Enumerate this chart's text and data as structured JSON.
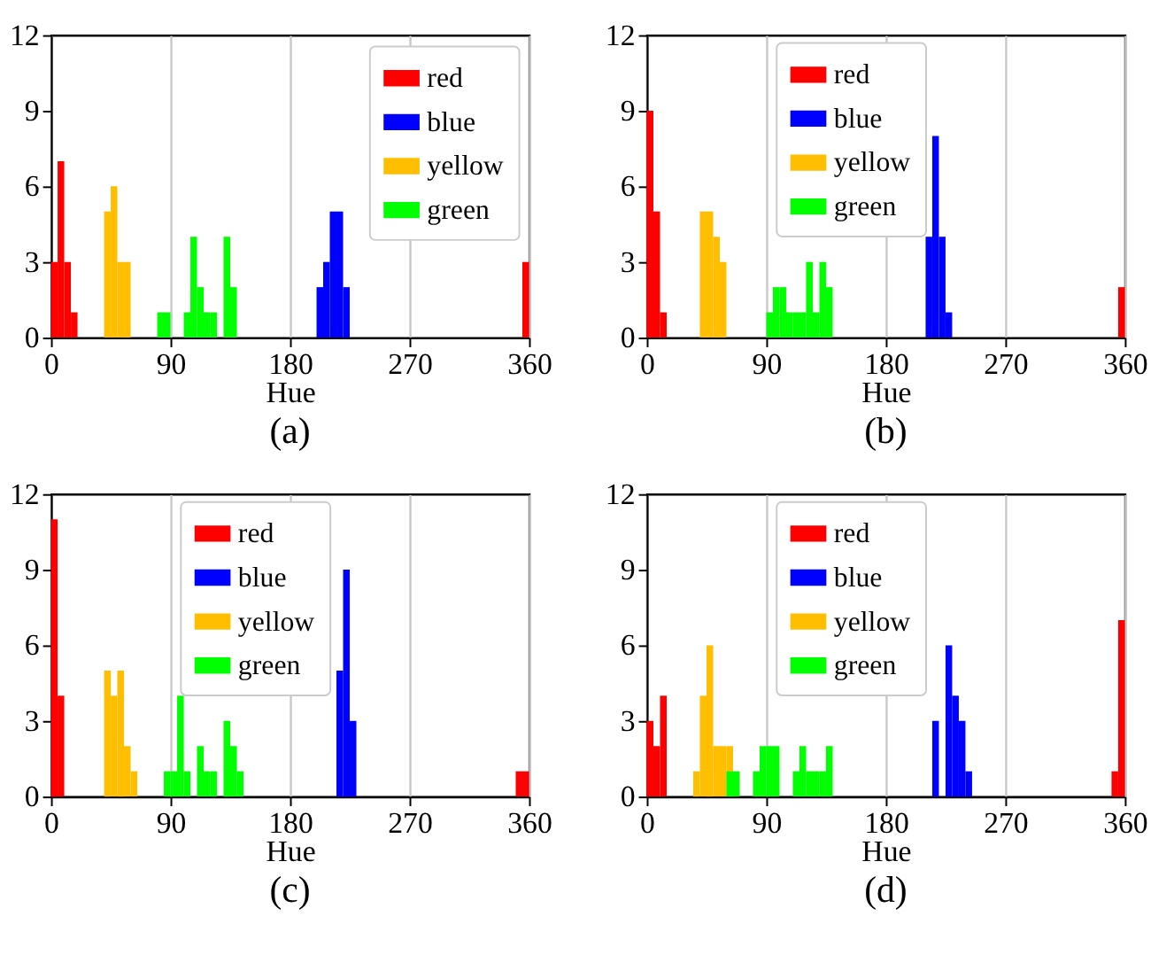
{
  "chart_data": [
    {
      "type": "histogram",
      "xlabel": "Hue",
      "annotations": [
        "(a)"
      ],
      "xlim": [
        0,
        360
      ],
      "xticks": [
        0,
        90,
        180,
        270,
        360
      ],
      "ylim": [
        0,
        12
      ],
      "yticks": [
        0,
        3,
        6,
        9,
        12
      ],
      "grid": "x",
      "legend": "top right",
      "bins": [
        0,
        5,
        10,
        15,
        20,
        25,
        30,
        35,
        40,
        45,
        50,
        55,
        60,
        65,
        70,
        75,
        80,
        85,
        90,
        95,
        100,
        105,
        110,
        115,
        120,
        125,
        130,
        135,
        140,
        145,
        150,
        155,
        160,
        165,
        170,
        175,
        180,
        185,
        190,
        195,
        200,
        205,
        210,
        215,
        220,
        225,
        230,
        235,
        240,
        245,
        250,
        255,
        260,
        265,
        270,
        275,
        280,
        285,
        290,
        295,
        300,
        305,
        310,
        315,
        320,
        325,
        330,
        335,
        340,
        345,
        350,
        355,
        360
      ],
      "series": [
        {
          "name": "red",
          "color": "#ff0000",
          "values": [
            3,
            7,
            3,
            1,
            0,
            0,
            0,
            0,
            0,
            0,
            0,
            0,
            0,
            0,
            0,
            0,
            0,
            0,
            0,
            0,
            0,
            0,
            0,
            0,
            0,
            0,
            0,
            0,
            0,
            0,
            0,
            0,
            0,
            0,
            0,
            0,
            0,
            0,
            0,
            0,
            0,
            0,
            0,
            0,
            0,
            0,
            0,
            0,
            0,
            0,
            0,
            0,
            0,
            0,
            0,
            0,
            0,
            0,
            0,
            0,
            0,
            0,
            0,
            0,
            0,
            0,
            0,
            0,
            0,
            0,
            0,
            3
          ]
        },
        {
          "name": "blue",
          "color": "#0000ff",
          "values": [
            0,
            0,
            0,
            0,
            0,
            0,
            0,
            0,
            0,
            0,
            0,
            0,
            0,
            0,
            0,
            0,
            0,
            0,
            0,
            0,
            0,
            0,
            0,
            0,
            0,
            0,
            0,
            0,
            0,
            0,
            0,
            0,
            0,
            0,
            0,
            0,
            0,
            0,
            0,
            0,
            2,
            3,
            5,
            5,
            2,
            0,
            0,
            0,
            0,
            0,
            0,
            0,
            0,
            0,
            0,
            0,
            0,
            0,
            0,
            0,
            0,
            0,
            0,
            0,
            0,
            0,
            0,
            0,
            0,
            0,
            0,
            0
          ]
        },
        {
          "name": "yellow",
          "color": "#ffbf00",
          "values": [
            0,
            0,
            0,
            0,
            0,
            0,
            0,
            0,
            5,
            6,
            3,
            3,
            0,
            0,
            0,
            0,
            0,
            0,
            0,
            0,
            0,
            0,
            0,
            0,
            0,
            0,
            0,
            0,
            0,
            0,
            0,
            0,
            0,
            0,
            0,
            0,
            0,
            0,
            0,
            0,
            0,
            0,
            0,
            0,
            0,
            0,
            0,
            0,
            0,
            0,
            0,
            0,
            0,
            0,
            0,
            0,
            0,
            0,
            0,
            0,
            0,
            0,
            0,
            0,
            0,
            0,
            0,
            0,
            0,
            0,
            0,
            0
          ]
        },
        {
          "name": "green",
          "color": "#00ff00",
          "values": [
            0,
            0,
            0,
            0,
            0,
            0,
            0,
            0,
            0,
            0,
            0,
            0,
            0,
            0,
            0,
            0,
            1,
            1,
            0,
            0,
            1,
            4,
            2,
            1,
            1,
            0,
            4,
            2,
            0,
            0,
            0,
            0,
            0,
            0,
            0,
            0,
            0,
            0,
            0,
            0,
            0,
            0,
            0,
            0,
            0,
            0,
            0,
            0,
            0,
            0,
            0,
            0,
            0,
            0,
            0,
            0,
            0,
            0,
            0,
            0,
            0,
            0,
            0,
            0,
            0,
            0,
            0,
            0,
            0,
            0,
            0,
            0
          ]
        }
      ]
    },
    {
      "type": "histogram",
      "xlabel": "Hue",
      "annotations": [
        "(b)"
      ],
      "xlim": [
        0,
        360
      ],
      "xticks": [
        0,
        90,
        180,
        270,
        360
      ],
      "ylim": [
        0,
        12
      ],
      "yticks": [
        0,
        3,
        6,
        9,
        12
      ],
      "grid": "x",
      "legend": "top",
      "bins": [
        0,
        5,
        10,
        15,
        20,
        25,
        30,
        35,
        40,
        45,
        50,
        55,
        60,
        65,
        70,
        75,
        80,
        85,
        90,
        95,
        100,
        105,
        110,
        115,
        120,
        125,
        130,
        135,
        140,
        145,
        150,
        155,
        160,
        165,
        170,
        175,
        180,
        185,
        190,
        195,
        200,
        205,
        210,
        215,
        220,
        225,
        230,
        235,
        240,
        245,
        250,
        255,
        260,
        265,
        270,
        275,
        280,
        285,
        290,
        295,
        300,
        305,
        310,
        315,
        320,
        325,
        330,
        335,
        340,
        345,
        350,
        355,
        360
      ],
      "series": [
        {
          "name": "red",
          "color": "#ff0000",
          "values": [
            9,
            5,
            1,
            0,
            0,
            0,
            0,
            0,
            0,
            0,
            0,
            0,
            0,
            0,
            0,
            0,
            0,
            0,
            0,
            0,
            0,
            0,
            0,
            0,
            0,
            0,
            0,
            0,
            0,
            0,
            0,
            0,
            0,
            0,
            0,
            0,
            0,
            0,
            0,
            0,
            0,
            0,
            0,
            0,
            0,
            0,
            0,
            0,
            0,
            0,
            0,
            0,
            0,
            0,
            0,
            0,
            0,
            0,
            0,
            0,
            0,
            0,
            0,
            0,
            0,
            0,
            0,
            0,
            0,
            0,
            0,
            2
          ]
        },
        {
          "name": "blue",
          "color": "#0000ff",
          "values": [
            0,
            0,
            0,
            0,
            0,
            0,
            0,
            0,
            0,
            0,
            0,
            0,
            0,
            0,
            0,
            0,
            0,
            0,
            0,
            0,
            0,
            0,
            0,
            0,
            0,
            0,
            0,
            0,
            0,
            0,
            0,
            0,
            0,
            0,
            0,
            0,
            0,
            0,
            0,
            0,
            0,
            0,
            4,
            8,
            4,
            1,
            0,
            0,
            0,
            0,
            0,
            0,
            0,
            0,
            0,
            0,
            0,
            0,
            0,
            0,
            0,
            0,
            0,
            0,
            0,
            0,
            0,
            0,
            0,
            0,
            0,
            0
          ]
        },
        {
          "name": "yellow",
          "color": "#ffbf00",
          "values": [
            0,
            0,
            0,
            0,
            0,
            0,
            0,
            0,
            5,
            5,
            4,
            3,
            0,
            0,
            0,
            0,
            0,
            0,
            0,
            0,
            0,
            0,
            0,
            0,
            0,
            0,
            0,
            0,
            0,
            0,
            0,
            0,
            0,
            0,
            0,
            0,
            0,
            0,
            0,
            0,
            0,
            0,
            0,
            0,
            0,
            0,
            0,
            0,
            0,
            0,
            0,
            0,
            0,
            0,
            0,
            0,
            0,
            0,
            0,
            0,
            0,
            0,
            0,
            0,
            0,
            0,
            0,
            0,
            0,
            0,
            0,
            0
          ]
        },
        {
          "name": "green",
          "color": "#00ff00",
          "values": [
            0,
            0,
            0,
            0,
            0,
            0,
            0,
            0,
            0,
            0,
            0,
            0,
            0,
            0,
            0,
            0,
            0,
            0,
            1,
            2,
            2,
            1,
            1,
            1,
            3,
            1,
            3,
            2,
            0,
            0,
            0,
            0,
            0,
            0,
            0,
            0,
            0,
            0,
            0,
            0,
            0,
            0,
            0,
            0,
            0,
            0,
            0,
            0,
            0,
            0,
            0,
            0,
            0,
            0,
            0,
            0,
            0,
            0,
            0,
            0,
            0,
            0,
            0,
            0,
            0,
            0,
            0,
            0,
            0,
            0,
            0,
            0
          ]
        }
      ]
    },
    {
      "type": "histogram",
      "xlabel": "Hue",
      "annotations": [
        "(c)"
      ],
      "xlim": [
        0,
        360
      ],
      "xticks": [
        0,
        90,
        180,
        270,
        360
      ],
      "ylim": [
        0,
        12
      ],
      "yticks": [
        0,
        3,
        6,
        9,
        12
      ],
      "grid": "x",
      "legend": "top",
      "bins": [
        0,
        5,
        10,
        15,
        20,
        25,
        30,
        35,
        40,
        45,
        50,
        55,
        60,
        65,
        70,
        75,
        80,
        85,
        90,
        95,
        100,
        105,
        110,
        115,
        120,
        125,
        130,
        135,
        140,
        145,
        150,
        155,
        160,
        165,
        170,
        175,
        180,
        185,
        190,
        195,
        200,
        205,
        210,
        215,
        220,
        225,
        230,
        235,
        240,
        245,
        250,
        255,
        260,
        265,
        270,
        275,
        280,
        285,
        290,
        295,
        300,
        305,
        310,
        315,
        320,
        325,
        330,
        335,
        340,
        345,
        350,
        355,
        360
      ],
      "series": [
        {
          "name": "red",
          "color": "#ff0000",
          "values": [
            11,
            4,
            0,
            0,
            0,
            0,
            0,
            0,
            0,
            0,
            0,
            0,
            0,
            0,
            0,
            0,
            0,
            0,
            0,
            0,
            0,
            0,
            0,
            0,
            0,
            0,
            0,
            0,
            0,
            0,
            0,
            0,
            0,
            0,
            0,
            0,
            0,
            0,
            0,
            0,
            0,
            0,
            0,
            0,
            0,
            0,
            0,
            0,
            0,
            0,
            0,
            0,
            0,
            0,
            0,
            0,
            0,
            0,
            0,
            0,
            0,
            0,
            0,
            0,
            0,
            0,
            0,
            0,
            0,
            0,
            1,
            1
          ]
        },
        {
          "name": "blue",
          "color": "#0000ff",
          "values": [
            0,
            0,
            0,
            0,
            0,
            0,
            0,
            0,
            0,
            0,
            0,
            0,
            0,
            0,
            0,
            0,
            0,
            0,
            0,
            0,
            0,
            0,
            0,
            0,
            0,
            0,
            0,
            0,
            0,
            0,
            0,
            0,
            0,
            0,
            0,
            0,
            0,
            0,
            0,
            0,
            0,
            0,
            0,
            5,
            9,
            3,
            0,
            0,
            0,
            0,
            0,
            0,
            0,
            0,
            0,
            0,
            0,
            0,
            0,
            0,
            0,
            0,
            0,
            0,
            0,
            0,
            0,
            0,
            0,
            0,
            0,
            0
          ]
        },
        {
          "name": "yellow",
          "color": "#ffbf00",
          "values": [
            0,
            0,
            0,
            0,
            0,
            0,
            0,
            0,
            5,
            4,
            5,
            2,
            1,
            0,
            0,
            0,
            0,
            0,
            0,
            0,
            0,
            0,
            0,
            0,
            0,
            0,
            0,
            0,
            0,
            0,
            0,
            0,
            0,
            0,
            0,
            0,
            0,
            0,
            0,
            0,
            0,
            0,
            0,
            0,
            0,
            0,
            0,
            0,
            0,
            0,
            0,
            0,
            0,
            0,
            0,
            0,
            0,
            0,
            0,
            0,
            0,
            0,
            0,
            0,
            0,
            0,
            0,
            0,
            0,
            0,
            0,
            0
          ]
        },
        {
          "name": "green",
          "color": "#00ff00",
          "values": [
            0,
            0,
            0,
            0,
            0,
            0,
            0,
            0,
            0,
            0,
            0,
            0,
            0,
            0,
            0,
            0,
            0,
            1,
            1,
            4,
            1,
            0,
            2,
            1,
            1,
            0,
            3,
            2,
            1,
            0,
            0,
            0,
            0,
            0,
            0,
            0,
            0,
            0,
            0,
            0,
            0,
            0,
            0,
            0,
            0,
            0,
            0,
            0,
            0,
            0,
            0,
            0,
            0,
            0,
            0,
            0,
            0,
            0,
            0,
            0,
            0,
            0,
            0,
            0,
            0,
            0,
            0,
            0,
            0,
            0,
            0,
            0
          ]
        }
      ]
    },
    {
      "type": "histogram",
      "xlabel": "Hue",
      "annotations": [
        "(d)"
      ],
      "xlim": [
        0,
        360
      ],
      "xticks": [
        0,
        90,
        180,
        270,
        360
      ],
      "ylim": [
        0,
        12
      ],
      "yticks": [
        0,
        3,
        6,
        9,
        12
      ],
      "grid": "x",
      "legend": "top",
      "bins": [
        0,
        5,
        10,
        15,
        20,
        25,
        30,
        35,
        40,
        45,
        50,
        55,
        60,
        65,
        70,
        75,
        80,
        85,
        90,
        95,
        100,
        105,
        110,
        115,
        120,
        125,
        130,
        135,
        140,
        145,
        150,
        155,
        160,
        165,
        170,
        175,
        180,
        185,
        190,
        195,
        200,
        205,
        210,
        215,
        220,
        225,
        230,
        235,
        240,
        245,
        250,
        255,
        260,
        265,
        270,
        275,
        280,
        285,
        290,
        295,
        300,
        305,
        310,
        315,
        320,
        325,
        330,
        335,
        340,
        345,
        350,
        355,
        360
      ],
      "series": [
        {
          "name": "red",
          "color": "#ff0000",
          "values": [
            3,
            2,
            4,
            0,
            0,
            0,
            0,
            0,
            0,
            0,
            0,
            0,
            0,
            0,
            0,
            0,
            0,
            0,
            0,
            0,
            0,
            0,
            0,
            0,
            0,
            0,
            0,
            0,
            0,
            0,
            0,
            0,
            0,
            0,
            0,
            0,
            0,
            0,
            0,
            0,
            0,
            0,
            0,
            0,
            0,
            0,
            0,
            0,
            0,
            0,
            0,
            0,
            0,
            0,
            0,
            0,
            0,
            0,
            0,
            0,
            0,
            0,
            0,
            0,
            0,
            0,
            0,
            0,
            0,
            0,
            1,
            7
          ]
        },
        {
          "name": "blue",
          "color": "#0000ff",
          "values": [
            0,
            0,
            0,
            0,
            0,
            0,
            0,
            0,
            0,
            0,
            0,
            0,
            0,
            0,
            0,
            0,
            0,
            0,
            0,
            0,
            0,
            0,
            0,
            0,
            0,
            0,
            0,
            0,
            0,
            0,
            0,
            0,
            0,
            0,
            0,
            0,
            0,
            0,
            0,
            0,
            0,
            0,
            0,
            3,
            0,
            6,
            4,
            3,
            1,
            0,
            0,
            0,
            0,
            0,
            0,
            0,
            0,
            0,
            0,
            0,
            0,
            0,
            0,
            0,
            0,
            0,
            0,
            0,
            0,
            0,
            0,
            0
          ]
        },
        {
          "name": "yellow",
          "color": "#ffbf00",
          "values": [
            0,
            0,
            0,
            0,
            0,
            0,
            0,
            1,
            4,
            6,
            2,
            2,
            2,
            0,
            0,
            0,
            0,
            0,
            0,
            0,
            0,
            0,
            0,
            0,
            0,
            0,
            0,
            0,
            0,
            0,
            0,
            0,
            0,
            0,
            0,
            0,
            0,
            0,
            0,
            0,
            0,
            0,
            0,
            0,
            0,
            0,
            0,
            0,
            0,
            0,
            0,
            0,
            0,
            0,
            0,
            0,
            0,
            0,
            0,
            0,
            0,
            0,
            0,
            0,
            0,
            0,
            0,
            0,
            0,
            0,
            0,
            0
          ]
        },
        {
          "name": "green",
          "color": "#00ff00",
          "values": [
            0,
            0,
            0,
            0,
            0,
            0,
            0,
            0,
            0,
            0,
            0,
            0,
            1,
            1,
            0,
            0,
            1,
            2,
            2,
            2,
            0,
            0,
            1,
            2,
            1,
            1,
            1,
            2,
            0,
            0,
            0,
            0,
            0,
            0,
            0,
            0,
            0,
            0,
            0,
            0,
            0,
            0,
            0,
            0,
            0,
            0,
            0,
            0,
            0,
            0,
            0,
            0,
            0,
            0,
            0,
            0,
            0,
            0,
            0,
            0,
            0,
            0,
            0,
            0,
            0,
            0,
            0,
            0,
            0,
            0,
            0,
            0
          ]
        }
      ]
    }
  ]
}
